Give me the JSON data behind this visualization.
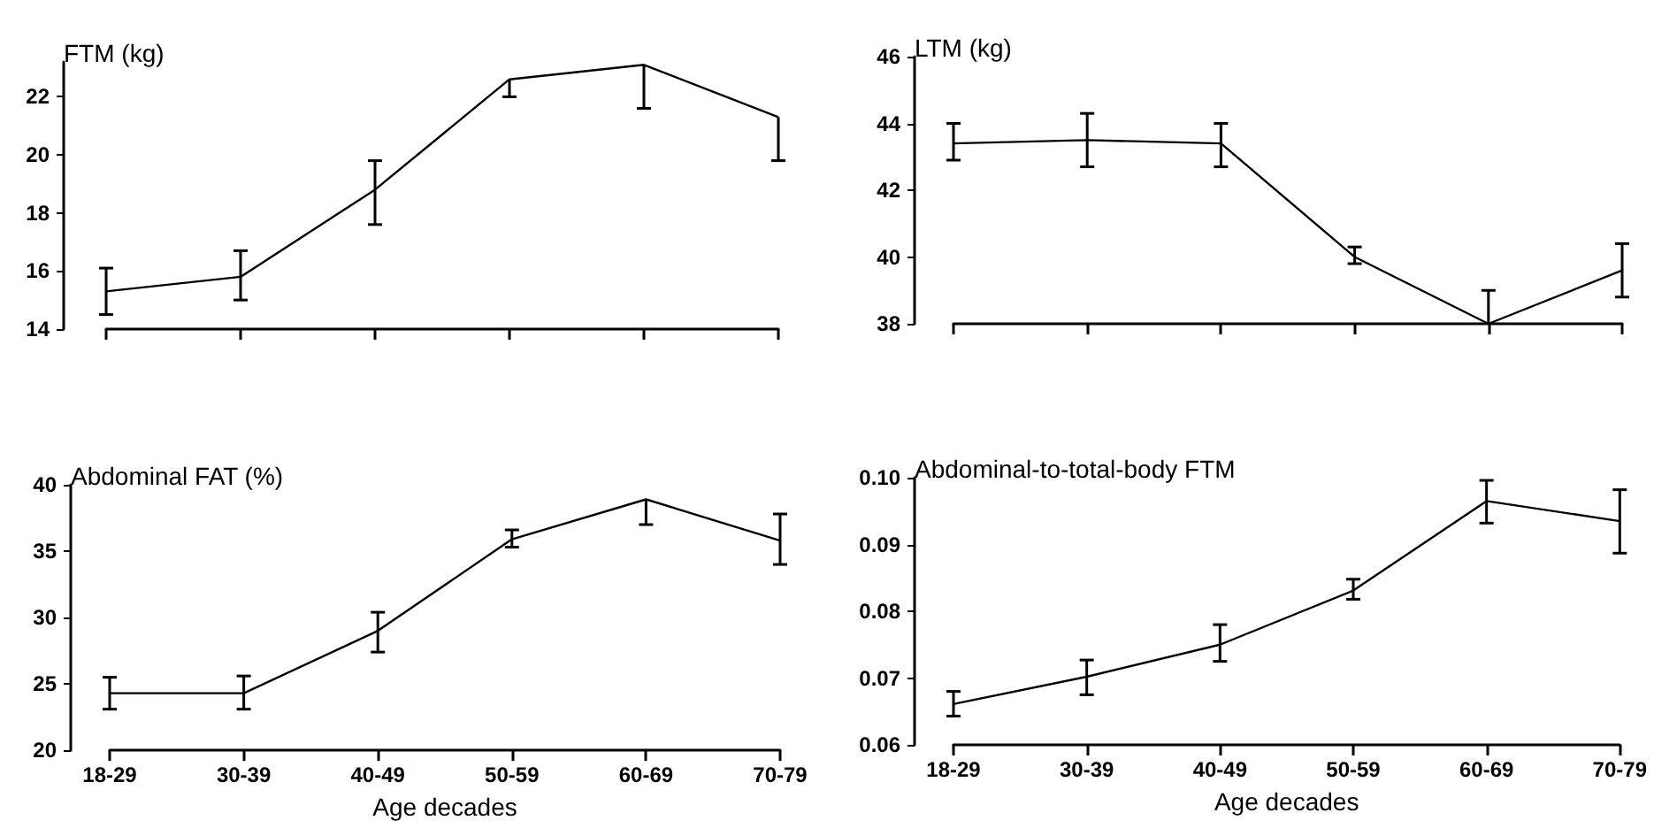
{
  "chart_data": [
    {
      "type": "line",
      "ylabel": "FTM (kg)",
      "categories": [
        null,
        null,
        null,
        null,
        null,
        null
      ],
      "color": "#000000",
      "marker": "none",
      "tick_labels": "y",
      "values": [
        15.3,
        15.8,
        18.8,
        22.6,
        23.1,
        21.3
      ],
      "errors": [
        [
          14.5,
          16.1
        ],
        [
          15.0,
          16.7
        ],
        [
          17.6,
          19.8
        ],
        [
          22.0,
          22.6
        ],
        [
          21.6,
          23.1
        ],
        [
          19.8,
          21.3
        ]
      ],
      "ylim": [
        14,
        23.2
      ],
      "yticks": [
        14,
        16,
        18,
        20,
        22
      ]
    },
    {
      "type": "line",
      "ylabel": "LTM (kg)",
      "categories": [
        null,
        null,
        null,
        null,
        null,
        null
      ],
      "color": "#000000",
      "marker": "none",
      "tick_labels": "y",
      "values": [
        43.4,
        43.5,
        43.4,
        40.0,
        38.0,
        39.6
      ],
      "errors": [
        [
          42.9,
          44.0
        ],
        [
          42.7,
          44.3
        ],
        [
          42.7,
          44.0
        ],
        [
          39.8,
          40.3
        ],
        [
          38.0,
          39.0
        ],
        [
          38.8,
          40.4
        ]
      ],
      "ylim": [
        38,
        46
      ],
      "yticks": [
        38,
        40,
        42,
        44,
        46
      ]
    },
    {
      "type": "line",
      "ylabel": "Abdominal FAT (%)",
      "xlabel": "Age decades",
      "categories": [
        "18-29",
        "30-39",
        "40-49",
        "50-59",
        "60-69",
        "70-79"
      ],
      "color": "#000000",
      "marker": "none",
      "values": [
        24.3,
        24.3,
        29.0,
        35.9,
        38.9,
        35.8
      ],
      "errors": [
        [
          23.1,
          25.5
        ],
        [
          23.1,
          25.6
        ],
        [
          27.4,
          30.4
        ],
        [
          35.3,
          36.6
        ],
        [
          37.0,
          38.9
        ],
        [
          34.0,
          37.8
        ]
      ],
      "ylim": [
        20,
        40
      ],
      "yticks": [
        20,
        25,
        30,
        35,
        40
      ]
    },
    {
      "type": "line",
      "ylabel": "Abdominal-to-total-body FTM",
      "xlabel": "Age decades",
      "categories": [
        "18-29",
        "30-39",
        "40-49",
        "50-59",
        "60-69",
        "70-79"
      ],
      "color": "#000000",
      "marker": "none",
      "values": [
        0.0661,
        0.0702,
        0.075,
        0.0831,
        0.0965,
        0.0935
      ],
      "errors": [
        [
          0.0643,
          0.068
        ],
        [
          0.0675,
          0.0727
        ],
        [
          0.0725,
          0.078
        ],
        [
          0.0818,
          0.0848
        ],
        [
          0.0932,
          0.0996
        ],
        [
          0.0887,
          0.0982
        ]
      ],
      "ylim": [
        0.06,
        0.1
      ],
      "yticks": [
        0.06,
        0.07,
        0.08,
        0.09,
        {
          "value": 0.1,
          "label": "0.10"
        }
      ]
    }
  ]
}
